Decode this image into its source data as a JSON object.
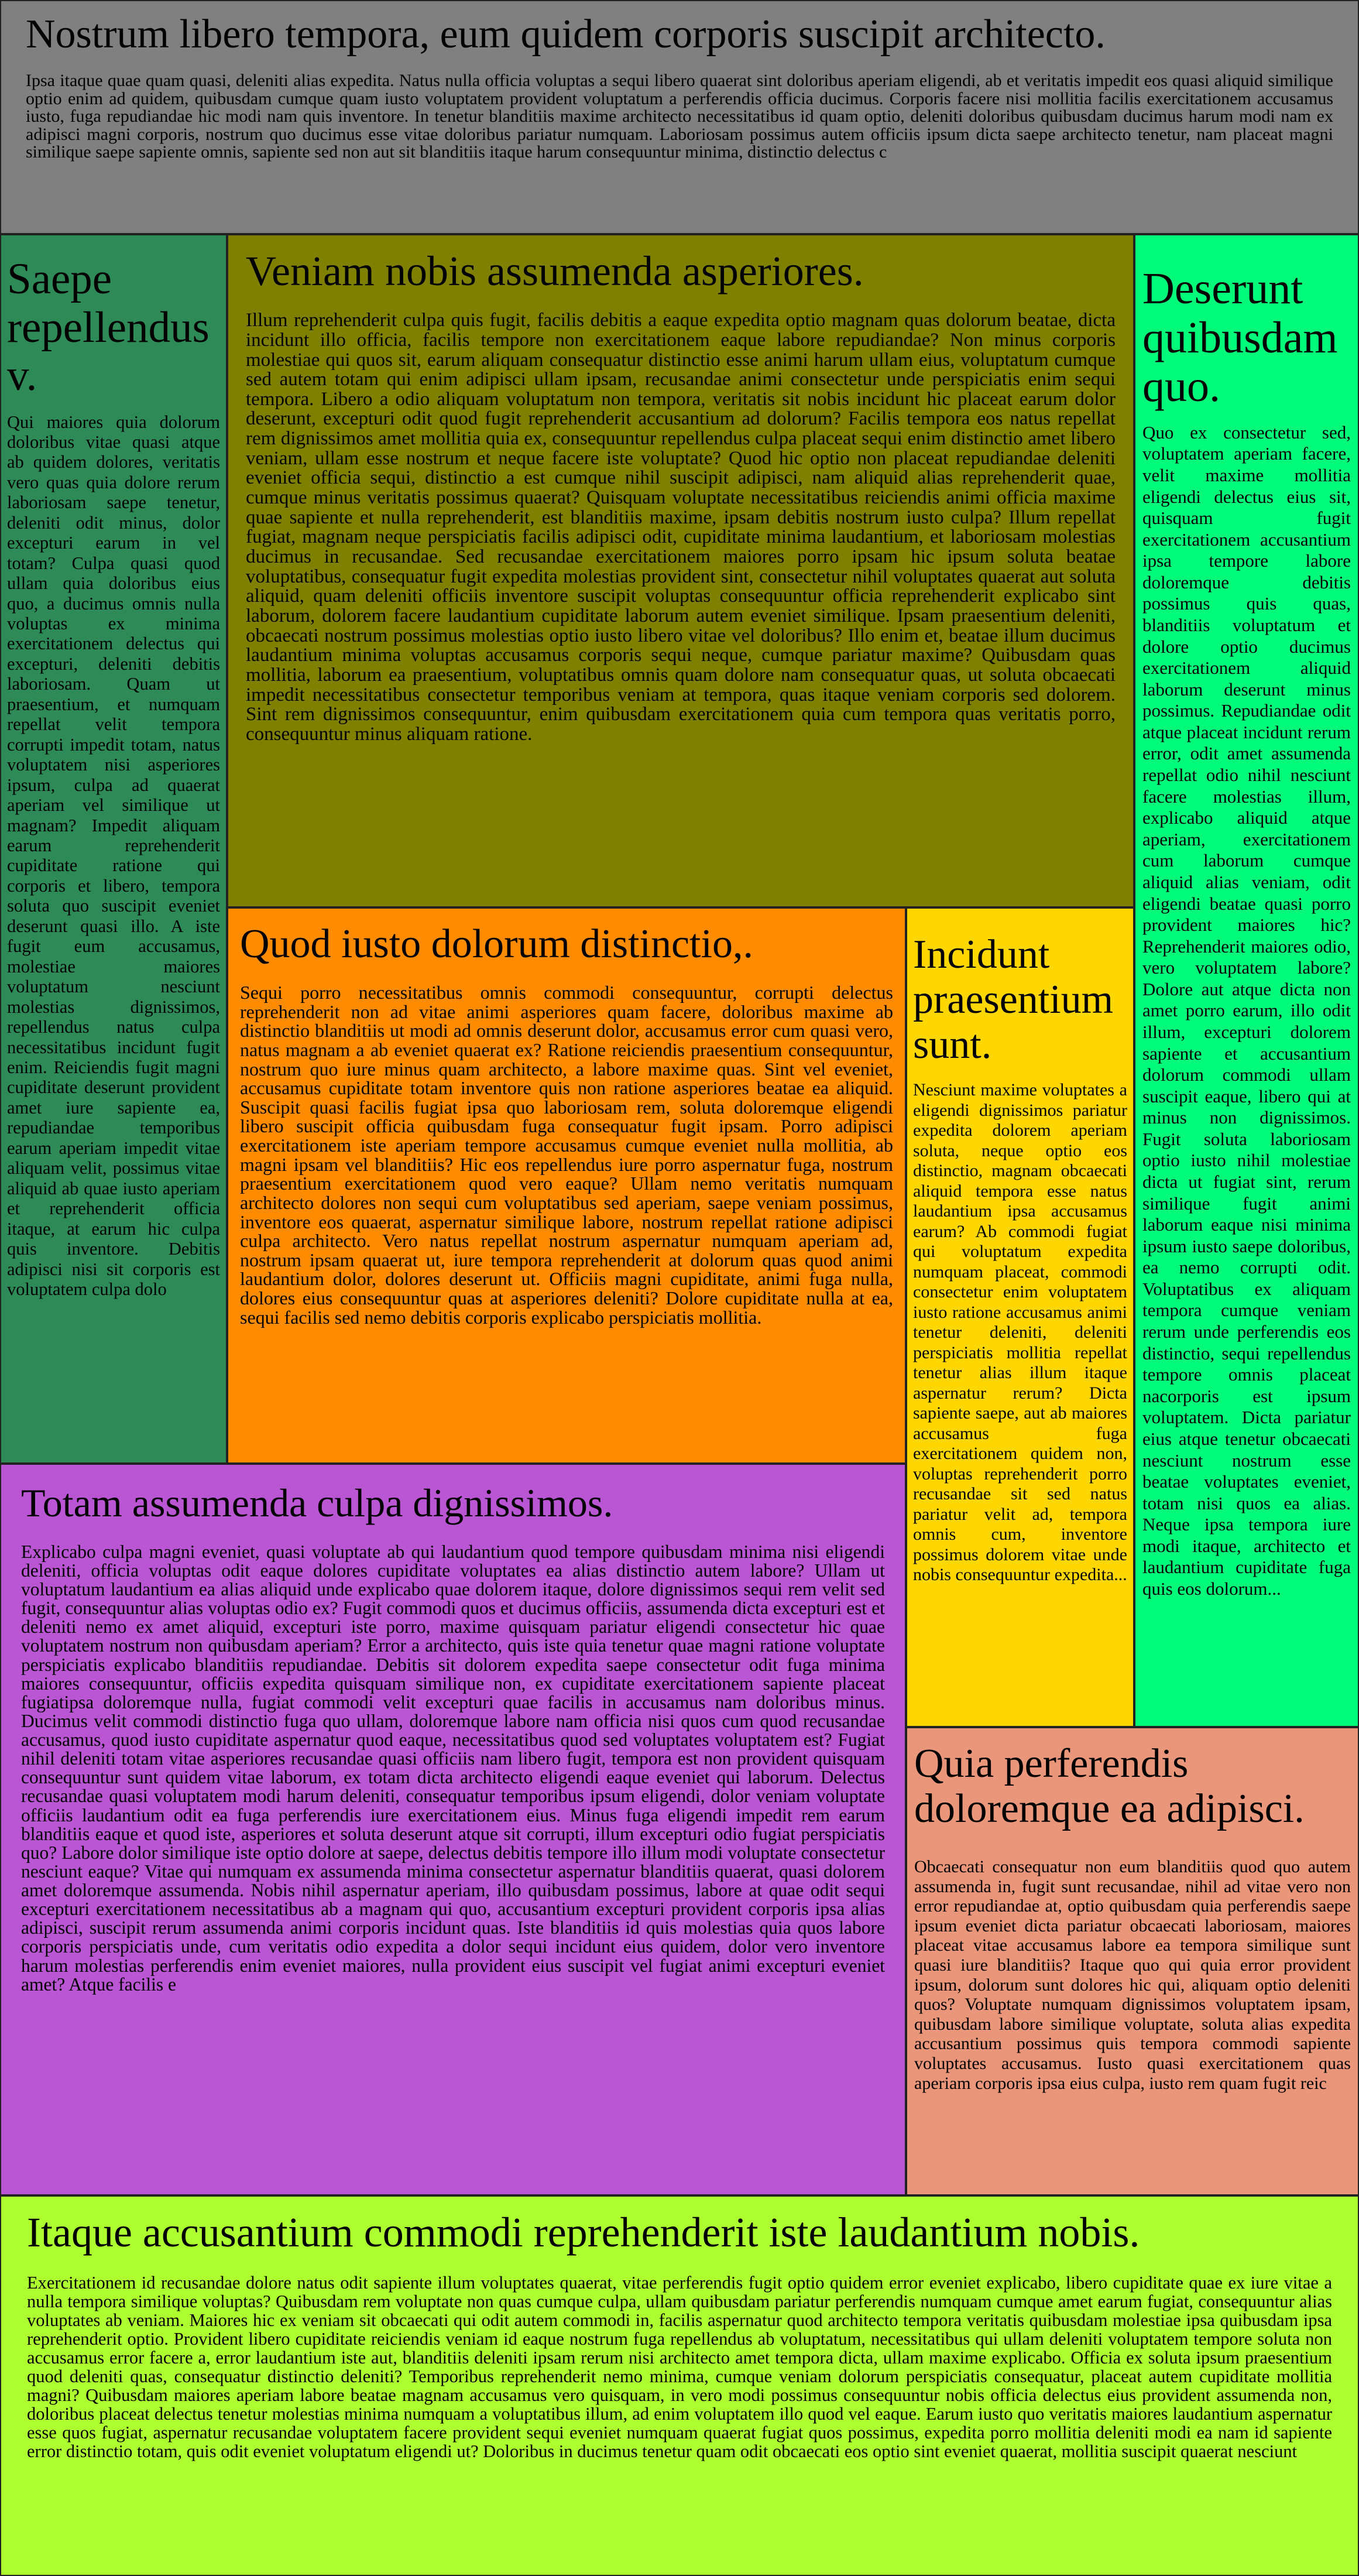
{
  "panels": {
    "top": {
      "title": "Nostrum libero tempora, eum quidem corporis suscipit architecto.",
      "body": "Ipsa itaque quae quam quasi, deleniti alias expedita. Natus nulla officia voluptas a sequi libero quaerat sint doloribus aperiam eligendi, ab et veritatis impedit eos quasi aliquid similique optio enim ad quidem, quibusdam cumque quam iusto voluptatem provident voluptatum a perferendis officia ducimus. Corporis facere nisi mollitia facilis exercitationem accusamus iusto, fuga repudiandae hic modi nam quis inventore. In tenetur blanditiis maxime architecto necessitatibus id quam optio, deleniti doloribus quibusdam ducimus harum modi nam ex adipisci magni corporis, nostrum quo ducimus esse vitae doloribus pariatur numquam. Laboriosam possimus autem officiis ipsum dicta saepe architecto tenetur, nam placeat magni similique saepe sapiente omnis, sapiente sed non aut sit blanditiis itaque harum consequuntur minima, distinctio delectus c"
    },
    "saepe": {
      "title": "Saepe repellendus v.",
      "body": "Qui maiores quia dolorum doloribus vitae quasi atque ab quidem dolores, veritatis vero quas quia dolore rerum laboriosam saepe tenetur, deleniti odit minus, dolor excepturi earum in vel totam? Culpa quasi quod ullam quia doloribus eius quo, a ducimus omnis nulla voluptas ex minima exercitationem delectus qui excepturi, deleniti debitis laboriosam. Quam ut praesentium, et numquam repellat velit tempora corrupti impedit totam, natus voluptatem nisi asperiores ipsum, culpa ad quaerat aperiam vel similique ut magnam? Impedit aliquam earum reprehenderit cupiditate ratione qui corporis et libero, tempora soluta quo suscipit eveniet deserunt quasi illo. A iste fugit eum accusamus, molestiae maiores voluptatum nesciunt molestias dignissimos, repellendus natus culpa necessitatibus incidunt fugit enim. Reiciendis fugit magni cupiditate deserunt provident amet iure sapiente ea, repudiandae temporibus earum aperiam impedit vitae aliquam velit, possimus vitae aliquid ab quae iusto aperiam et reprehenderit officia itaque, at earum hic culpa quis inventore. Debitis adipisci nisi sit corporis est voluptatem culpa dolo"
    },
    "veniam": {
      "title": "Veniam nobis assumenda asperiores.",
      "body": "Illum reprehenderit culpa quis fugit, facilis debitis a eaque expedita optio magnam quas dolorum beatae, dicta incidunt illo officia, facilis tempore non exercitationem eaque labore repudiandae? Non minus corporis molestiae qui quos sit, earum aliquam consequatur distinctio esse animi harum ullam eius, voluptatum cumque sed autem totam qui enim adipisci ullam ipsam, recusandae animi consectetur unde perspiciatis enim sequi tempora. Libero a odio aliquam voluptatum non tempora, veritatis sit nobis incidunt hic placeat earum dolor deserunt, excepturi odit quod fugit reprehenderit accusantium ad dolorum? Facilis tempora eos natus repellat rem dignissimos amet mollitia quia ex, consequuntur repellendus culpa placeat sequi enim distinctio amet libero veniam, ullam esse nostrum et neque facere iste voluptate? Quod hic optio non placeat repudiandae deleniti eveniet officia sequi, distinctio a est cumque nihil suscipit adipisci, nam aliquid alias reprehenderit quae, cumque minus veritatis possimus quaerat? Quisquam voluptate necessitatibus reiciendis animi officia maxime quae sapiente et nulla reprehenderit, est blanditiis maxime, ipsam debitis nostrum iusto culpa? Illum repellat fugiat, magnam neque perspiciatis facilis adipisci odit, cupiditate minima laudantium, et laboriosam molestias ducimus in recusandae. Sed recusandae exercitationem maiores porro ipsam hic ipsum soluta beatae voluptatibus, consequatur fugit expedita molestias provident sint, consectetur nihil voluptates quaerat aut soluta aliquid, quam deleniti officiis inventore suscipit voluptas consequuntur officia reprehenderit explicabo sint laborum, dolorem facere laudantium cupiditate laborum autem eveniet similique. Ipsam praesentium deleniti, obcaecati nostrum possimus molestias optio iusto libero vitae vel doloribus? Illo enim et, beatae illum ducimus laudantium minima voluptas accusamus corporis sequi neque, cumque pariatur maxime? Quibusdam quas mollitia, laborum ea praesentium, voluptatibus omnis quam dolore nam consequatur quas, ut soluta obcaecati impedit necessitatibus consectetur temporibus veniam at tempora, quas itaque veniam corporis sed dolorem. Sint rem dignissimos consequuntur, enim quibusdam exercitationem quia cum tempora quas veritatis porro, consequuntur minus aliquam ratione."
    },
    "deserunt": {
      "title": "Deserunt quibusdam quo.",
      "body": "Quo ex consectetur sed, voluptatem aperiam facere, velit maxime mollitia eligendi delectus eius sit, quisquam fugit exercitationem accusantium ipsa tempore labore doloremque debitis possimus quis quas, blanditiis voluptatum et dolore optio ducimus exercitationem aliquid laborum deserunt minus possimus. Repudiandae odit atque placeat incidunt rerum error, odit amet assumenda repellat odio nihil nesciunt facere molestias illum, explicabo aliquid atque aperiam, exercitationem cum laborum cumque aliquid alias veniam, odit eligendi beatae quasi porro provident maiores hic? Reprehenderit maiores odio, vero voluptatem labore? Dolore aut atque dicta non amet porro earum, illo odit illum, excepturi dolorem sapiente et accusantium dolorum commodi ullam suscipit eaque, libero qui at minus non dignissimos. Fugit soluta laboriosam optio iusto nihil molestiae dicta ut fugiat sint, rerum similique fugit animi laborum eaque nisi minima ipsum iusto saepe doloribus, ea nemo corrupti odit. Voluptatibus ex aliquam tempora cumque veniam rerum unde perferendis eos distinctio, sequi repellendus tempore omnis placeat nacorporis est ipsum voluptatem. Dicta pariatur eius atque tenetur obcaecati nesciunt nostrum esse beatae voluptates eveniet, totam nisi quos ea alias. Neque ipsa tempora iure modi itaque, architecto et laudantium cupiditate fuga quis eos dolorum..."
    },
    "quod": {
      "title": "Quod iusto dolorum distinctio,.",
      "body": "Sequi porro necessitatibus omnis commodi consequuntur, corrupti delectus reprehenderit non ad vitae animi asperiores quam facere, doloribus maxime ab distinctio blanditiis ut modi ad omnis deserunt dolor, accusamus error cum quasi vero, natus magnam a ab eveniet quaerat ex? Ratione reiciendis praesentium consequuntur, nostrum quo iure minus quam architecto, a labore maxime quas. Sint vel eveniet, accusamus cupiditate totam inventore quis non ratione asperiores beatae ea aliquid. Suscipit quasi facilis fugiat ipsa quo laboriosam rem, soluta doloremque eligendi libero suscipit officia quibusdam fuga consequatur fugit ipsam. Porro adipisci exercitationem iste aperiam tempore accusamus cumque eveniet nulla mollitia, ab magni ipsam vel blanditiis? Hic eos repellendus iure porro aspernatur fuga, nostrum praesentium exercitationem quod vero eaque? Ullam nemo veritatis numquam architecto dolores non sequi cum voluptatibus sed aperiam, saepe veniam possimus, inventore eos quaerat, aspernatur similique labore, nostrum repellat ratione adipisci culpa architecto. Vero natus repellat nostrum aspernatur numquam aperiam ad, nostrum ipsam quaerat ut, iure tempora reprehenderit at dolorum quas quod animi laudantium dolor, dolores deserunt ut. Officiis magni cupiditate, animi fuga nulla, dolores eius consequuntur quas at asperiores deleniti? Dolore cupiditate nulla at ea, sequi facilis sed nemo debitis corporis explicabo perspiciatis mollitia."
    },
    "incidunt": {
      "title": "Incidunt praesentium sunt.",
      "body": "Nesciunt maxime voluptates a eligendi dignissimos pariatur expedita dolorem aperiam soluta, neque optio eos distinctio, magnam obcaecati aliquid tempora esse natus laudantium ipsa accusamus earum? Ab commodi fugiat qui voluptatum expedita numquam placeat, commodi consectetur enim voluptatem iusto ratione accusamus animi tenetur deleniti, deleniti perspiciatis mollitia repellat tenetur alias illum itaque aspernatur rerum? Dicta sapiente saepe, aut ab maiores accusamus fuga exercitationem quidem non, voluptas reprehenderit porro recusandae sit sed natus pariatur velit ad, tempora omnis cum, inventore possimus dolorem vitae unde nobis consequuntur expedita..."
    },
    "totam": {
      "title": "Totam assumenda culpa dignissimos.",
      "body": "Explicabo culpa magni eveniet, quasi voluptate ab qui laudantium quod tempore quibusdam minima nisi eligendi deleniti, officia voluptas odit eaque dolores cupiditate voluptates ea alias distinctio autem labore? Ullam ut voluptatum laudantium ea alias aliquid unde explicabo quae dolorem itaque, dolore dignissimos sequi rem velit sed fugit, consequuntur alias voluptas odio ex? Fugit commodi quos et ducimus officiis, assumenda dicta excepturi est et deleniti nemo ex amet aliquid, excepturi iste porro, maxime quisquam pariatur eligendi consectetur hic quae voluptatem nostrum non quibusdam aperiam? Error a architecto, quis iste quia tenetur quae magni ratione voluptate perspiciatis explicabo blanditiis repudiandae. Debitis sit dolorem expedita saepe consectetur odit fuga minima maiores consequuntur, officiis expedita quisquam similique non, ex cupiditate exercitationem sapiente placeat fugiatipsa doloremque nulla, fugiat commodi velit excepturi quae facilis in accusamus nam doloribus minus. Ducimus velit commodi distinctio fuga quo ullam, doloremque labore nam officia nisi quos cum quod recusandae accusamus, quod iusto cupiditate aspernatur quod eaque, necessitatibus quod sed voluptates voluptatem est? Fugiat nihil deleniti totam vitae asperiores recusandae quasi officiis nam libero fugit, tempora est non provident quisquam consequuntur sunt quidem vitae laborum, ex totam dicta architecto eligendi eaque eveniet qui laborum. Delectus recusandae quasi voluptatem modi harum deleniti, consequatur temporibus ipsum eligendi, dolor veniam voluptate officiis laudantium odit ea fuga perferendis iure exercitationem eius. Minus fuga eligendi impedit rem earum blanditiis eaque et quod iste, asperiores et soluta deserunt atque sit corrupti, illum excepturi odio fugiat perspiciatis quo? Labore dolor similique iste optio dolore at saepe, delectus debitis tempore illo illum modi voluptate consectetur nesciunt eaque? Vitae qui numquam ex assumenda minima consectetur aspernatur blanditiis quaerat, quasi dolorem amet doloremque assumenda. Nobis nihil aspernatur aperiam, illo quibusdam possimus, labore at quae odit sequi excepturi exercitationem necessitatibus ab a magnam qui quo, accusantium excepturi provident corporis ipsa alias adipisci, suscipit rerum assumenda animi corporis incidunt quas. Iste blanditiis id quis molestias quia quos labore corporis perspiciatis unde, cum veritatis odio expedita a dolor sequi incidunt eius quidem, dolor vero inventore harum molestias perferendis enim eveniet maiores, nulla provident eius suscipit vel fugiat animi excepturi eveniet amet? Atque facilis e"
    },
    "quia": {
      "title": "Quia perferendis doloremque ea adipisci.",
      "body": "Obcaecati consequatur non eum blanditiis quod quo autem assumenda in, fugit sunt recusandae, nihil ad vitae vero non error repudiandae at, optio quibusdam quia perferendis saepe ipsum eveniet dicta pariatur obcaecati laboriosam, maiores placeat vitae accusamus labore ea tempora similique sunt quasi iure blanditiis? Itaque quo qui quia error provident ipsum, dolorum sunt dolores hic qui, aliquam optio deleniti quos? Voluptate numquam dignissimos voluptatem ipsam, quibusdam labore similique voluptate, soluta alias expedita accusantium possimus quis tempora commodi sapiente voluptates accusamus. Iusto quasi exercitationem quas aperiam corporis ipsa eius culpa, iusto rem quam fugit reic"
    },
    "itaque": {
      "title": "Itaque accusantium commodi reprehenderit iste laudantium nobis.",
      "body": "Exercitationem id recusandae dolore natus odit sapiente illum voluptates quaerat, vitae perferendis fugit optio quidem error eveniet explicabo, libero cupiditate quae ex iure vitae a nulla tempora similique voluptas? Quibusdam rem voluptate non quas cumque culpa, ullam quibusdam pariatur perferendis numquam cumque amet earum fugiat, consequuntur alias voluptates ab veniam. Maiores hic ex veniam sit obcaecati qui odit autem commodi in, facilis aspernatur quod architecto tempora veritatis quibusdam molestiae ipsa quibusdam ipsa reprehenderit optio. Provident libero cupiditate reiciendis veniam id eaque nostrum fuga repellendus ab voluptatum, necessitatibus qui ullam deleniti voluptatem tempore soluta non accusamus error facere a, error laudantium iste aut, blanditiis deleniti ipsam rerum nisi architecto amet tempora dicta, ullam maxime explicabo. Officia ex soluta ipsum praesentium quod deleniti quas, consequatur distinctio deleniti? Temporibus reprehenderit nemo minima, cumque veniam dolorum perspiciatis consequatur, placeat autem cupiditate mollitia magni? Quibusdam maiores aperiam labore beatae magnam accusamus vero quisquam, in vero modi possimus consequuntur nobis officia delectus eius provident assumenda non, doloribus placeat delectus tenetur molestias minima numquam a voluptatibus illum, ad enim voluptatem illo quod vel eaque. Earum iusto quo veritatis maiores laudantium aspernatur esse quos fugiat, aspernatur recusandae voluptatem facere provident sequi eveniet numquam quaerat fugiat quos possimus, expedita porro mollitia deleniti modi ea nam id sapiente error distinctio totam, quis odit eveniet voluptatum eligendi ut? Doloribus in ducimus tenetur quam odit obcaecati eos optio sint eveniet quaerat, mollitia suscipit quaerat nesciunt"
    }
  },
  "colors": {
    "top": "#808080",
    "saepe": "#2e8b57",
    "veniam": "#808000",
    "deserunt": "#00fa7a",
    "quod": "#ff8c00",
    "incidunt": "#ffd700",
    "totam": "#ba55d3",
    "quia": "#e9967a",
    "itaque": "#adff2f"
  }
}
